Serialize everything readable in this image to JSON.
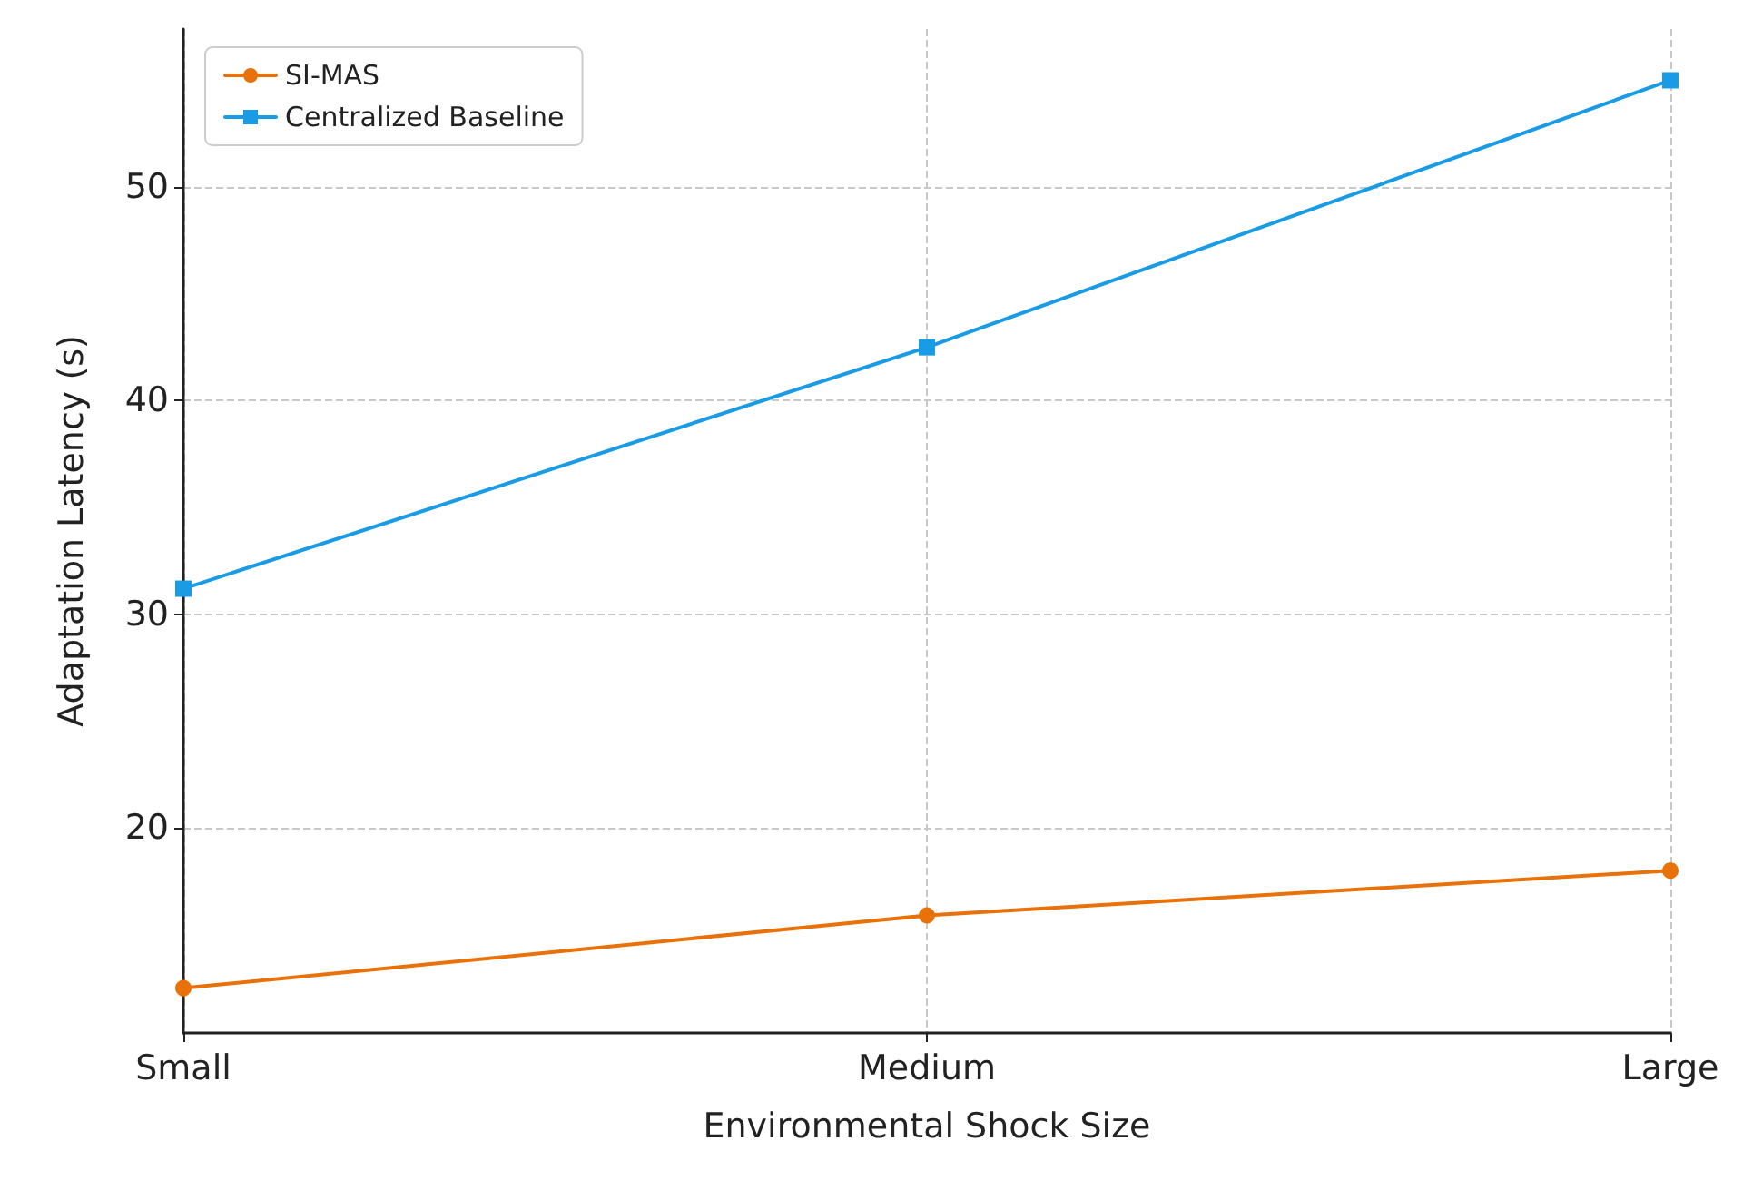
{
  "chart_data": {
    "type": "line",
    "xlabel": "Environmental Shock Size",
    "ylabel": "Adaptation Latency (s)",
    "categories": [
      "Small",
      "Medium",
      "Large"
    ],
    "series": [
      {
        "name": "SI-MAS",
        "color": "#e8710a",
        "marker": "circle",
        "values": [
          12.5,
          15.9,
          18.0
        ]
      },
      {
        "name": "Centralized Baseline",
        "color": "#1a9be6",
        "marker": "square",
        "values": [
          31.2,
          42.5,
          55.0
        ]
      }
    ],
    "ylim": [
      10.4,
      57.4
    ],
    "yticks": [
      20,
      30,
      40,
      50
    ],
    "grid": true,
    "legend": "top left",
    "line_style": "solid"
  }
}
